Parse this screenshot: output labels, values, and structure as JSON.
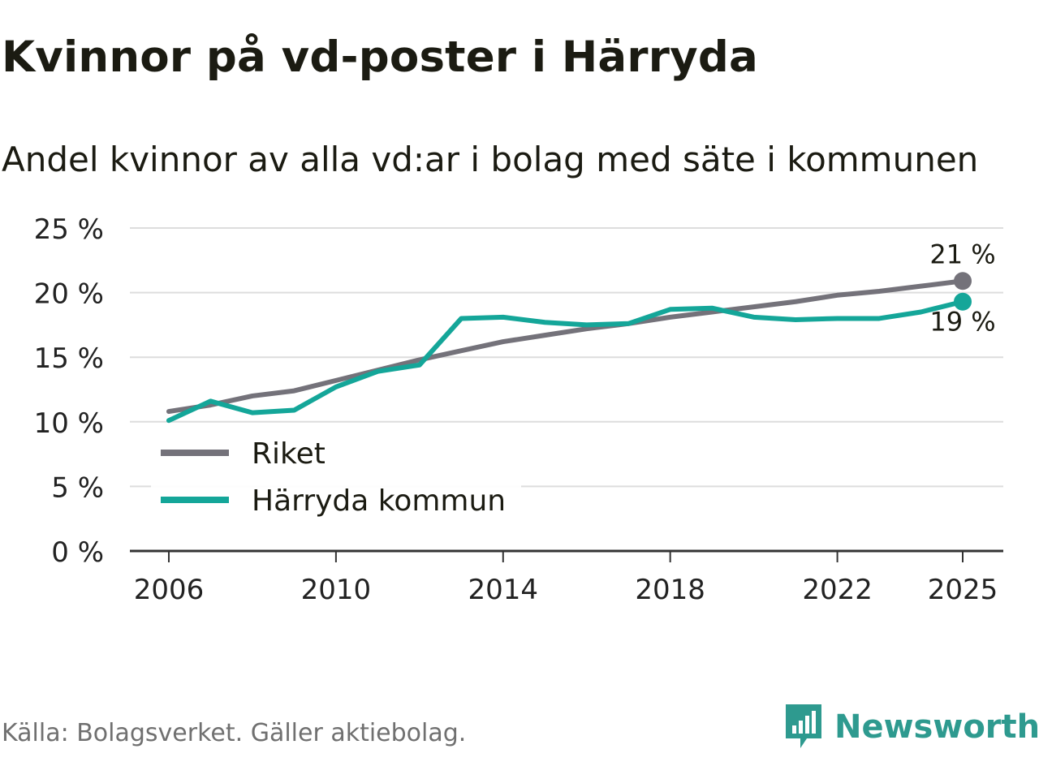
{
  "header": {
    "title": "Kvinnor på vd-poster i Härryda",
    "subtitle": "Andel kvinnor av alla vd:ar i bolag med säte i kommunen"
  },
  "footer": {
    "source": "Källa: Bolagsverket. Gäller aktiebolag.",
    "brand": "Newsworthy"
  },
  "colors": {
    "riket": "#74727a",
    "harryda": "#14a699",
    "grid": "#dddddd",
    "axis": "#333333",
    "brand": "#2e9a8f"
  },
  "chart_data": {
    "type": "line",
    "title": "Kvinnor på vd-poster i Härryda",
    "subtitle": "Andel kvinnor av alla vd:ar i bolag med säte i kommunen",
    "xlabel": "",
    "ylabel": "",
    "xlim": [
      2006,
      2025
    ],
    "ylim": [
      0,
      25
    ],
    "x_ticks": [
      2006,
      2010,
      2014,
      2018,
      2022,
      2025
    ],
    "y_ticks": [
      0,
      5,
      10,
      15,
      20,
      25
    ],
    "y_tick_labels": [
      "0 %",
      "5 %",
      "10 %",
      "15 %",
      "20 %",
      "25 %"
    ],
    "grid": true,
    "legend_position": "bottom-left",
    "x": [
      2006,
      2007,
      2008,
      2009,
      2010,
      2011,
      2012,
      2013,
      2014,
      2015,
      2016,
      2017,
      2018,
      2019,
      2020,
      2021,
      2022,
      2023,
      2024,
      2025
    ],
    "series": [
      {
        "name": "Riket",
        "color": "#74727a",
        "values": [
          10.8,
          11.3,
          12.0,
          12.4,
          13.2,
          14.0,
          14.8,
          15.5,
          16.2,
          16.7,
          17.2,
          17.6,
          18.1,
          18.5,
          18.9,
          19.3,
          19.8,
          20.1,
          20.5,
          20.9
        ],
        "end_label": "21 %"
      },
      {
        "name": "Härryda kommun",
        "color": "#14a699",
        "values": [
          10.1,
          11.6,
          10.7,
          10.9,
          12.7,
          13.9,
          14.4,
          18.0,
          18.1,
          17.7,
          17.5,
          17.6,
          18.7,
          18.8,
          18.1,
          17.9,
          18.0,
          18.0,
          18.5,
          19.3
        ],
        "end_label": "19 %"
      }
    ]
  }
}
